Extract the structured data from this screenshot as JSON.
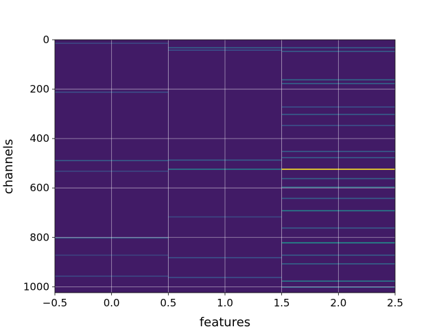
{
  "chart_data": {
    "type": "heatmap",
    "title": "",
    "xlabel": "features",
    "ylabel": "channels",
    "xlim": [
      -0.5,
      2.5
    ],
    "ylim": [
      1024,
      0
    ],
    "y_inverted": true,
    "grid": true,
    "colormap": "viridis",
    "x_ticks": [
      -0.5,
      0.0,
      0.5,
      1.0,
      1.5,
      2.0,
      2.5
    ],
    "x_tick_labels": [
      "−0.5",
      "0.0",
      "0.5",
      "1.0",
      "1.5",
      "2.0",
      "2.5"
    ],
    "y_ticks": [
      0,
      200,
      400,
      600,
      800,
      1000
    ],
    "y_tick_labels": [
      "0",
      "200",
      "400",
      "600",
      "800",
      "1000"
    ],
    "n_rows": 1024,
    "columns": [
      0,
      1,
      2
    ],
    "base_value": 0.08,
    "highlight_rows": [
      {
        "col": 0,
        "row": 12,
        "value": 0.22
      },
      {
        "col": 0,
        "row": 210,
        "value": 0.25
      },
      {
        "col": 0,
        "row": 487,
        "value": 0.3
      },
      {
        "col": 0,
        "row": 530,
        "value": 0.22
      },
      {
        "col": 0,
        "row": 800,
        "value": 0.3
      },
      {
        "col": 0,
        "row": 870,
        "value": 0.2
      },
      {
        "col": 0,
        "row": 955,
        "value": 0.22
      },
      {
        "col": 1,
        "row": 30,
        "value": 0.32
      },
      {
        "col": 1,
        "row": 40,
        "value": 0.25
      },
      {
        "col": 1,
        "row": 485,
        "value": 0.3
      },
      {
        "col": 1,
        "row": 522,
        "value": 0.42
      },
      {
        "col": 1,
        "row": 715,
        "value": 0.22
      },
      {
        "col": 1,
        "row": 880,
        "value": 0.25
      },
      {
        "col": 1,
        "row": 960,
        "value": 0.25
      },
      {
        "col": 2,
        "row": 30,
        "value": 0.3
      },
      {
        "col": 2,
        "row": 45,
        "value": 0.3
      },
      {
        "col": 2,
        "row": 160,
        "value": 0.35
      },
      {
        "col": 2,
        "row": 175,
        "value": 0.32
      },
      {
        "col": 2,
        "row": 270,
        "value": 0.25
      },
      {
        "col": 2,
        "row": 300,
        "value": 0.3
      },
      {
        "col": 2,
        "row": 345,
        "value": 0.25
      },
      {
        "col": 2,
        "row": 450,
        "value": 0.3
      },
      {
        "col": 2,
        "row": 475,
        "value": 0.3
      },
      {
        "col": 2,
        "row": 522,
        "value": 1.0
      },
      {
        "col": 2,
        "row": 560,
        "value": 0.32
      },
      {
        "col": 2,
        "row": 595,
        "value": 0.38
      },
      {
        "col": 2,
        "row": 640,
        "value": 0.3
      },
      {
        "col": 2,
        "row": 690,
        "value": 0.45
      },
      {
        "col": 2,
        "row": 760,
        "value": 0.3
      },
      {
        "col": 2,
        "row": 820,
        "value": 0.5
      },
      {
        "col": 2,
        "row": 870,
        "value": 0.3
      },
      {
        "col": 2,
        "row": 905,
        "value": 0.32
      },
      {
        "col": 2,
        "row": 975,
        "value": 0.42
      },
      {
        "col": 2,
        "row": 1000,
        "value": 0.3
      }
    ]
  }
}
